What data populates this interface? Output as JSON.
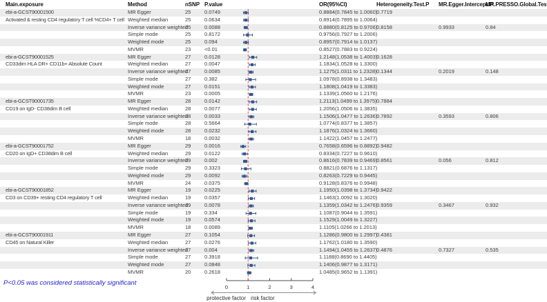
{
  "footnote": "P<0.05 was considered statistically significant",
  "colors": {
    "marker": "#33548c",
    "ref_line": "#e0493e",
    "stripe": "#ececec",
    "footnote": "#2323cc",
    "axis": "#4d4d4d",
    "arrow": "#8c8c8c",
    "tick_label": "#333333"
  },
  "chart_data": {
    "type": "table",
    "title": "",
    "headers": {
      "exposure": "Main.exposure",
      "method": "Method",
      "nsnp": "nSNP",
      "pvalue": "P.value",
      "or": "OR(95%CI)",
      "het": "Heterogeneity.Test.P",
      "egger": "MR.Egger.Intercept.P",
      "presso": "MR.PRESSO.Global.Test.P"
    },
    "x_axis": {
      "ticks": [
        0,
        1,
        2,
        3,
        4
      ],
      "range": [
        0,
        4
      ],
      "ref_line": 1,
      "label_left": "protective factor",
      "label_right": "risk factor"
    },
    "groups": [
      {
        "id": "ebi-a-GCST90001500",
        "name": "Activated & resting CD4 regulatory T cell %CD4+ T cell",
        "rows": [
          {
            "method": "MR Egger",
            "nsnp": "25",
            "p": "0.0749",
            "or": 0.8884,
            "lo": 0.7845,
            "hi": 1.006,
            "ci": "0.8884(0.7845 to 1.0060)",
            "het": "0.7719"
          },
          {
            "method": "Weighted median",
            "nsnp": "25",
            "p": "0.0634",
            "or": 0.8914,
            "lo": 0.7895,
            "hi": 1.0064,
            "ci": "0.8914(0.7895 to 1.0064)"
          },
          {
            "method": "Inverse variance weighted",
            "nsnp": "25",
            "p": "0.0088",
            "or": 0.888,
            "lo": 0.8125,
            "hi": 0.9706,
            "ci": "0.8880(0.8125 to 0.9706)",
            "het": "0.8158",
            "egger": "0.9933",
            "presso": "0.84"
          },
          {
            "method": "Simple mode",
            "nsnp": "25",
            "p": "0.8172",
            "or": 0.9756,
            "lo": 0.7927,
            "hi": 1.2006,
            "ci": "0.9756(0.7927 to 1.2006)"
          },
          {
            "method": "Weighted mode",
            "nsnp": "25",
            "p": "0.094",
            "or": 0.8957,
            "lo": 0.7914,
            "hi": 1.0137,
            "ci": "0.8957(0.7914 to 1.0137)"
          },
          {
            "method": "MVMR",
            "nsnp": "23",
            "p": "<0.01",
            "or": 0.8527,
            "lo": 0.7883,
            "hi": 0.9224,
            "ci": "0.8527(0.7883 to 0.9224)"
          }
        ]
      },
      {
        "id": "ebi-a-GCST90001525",
        "name": "CD33dim HLA DR+ CD11b+ Absolute Count",
        "rows": [
          {
            "method": "MR Egger",
            "nsnp": "27",
            "p": "0.0128",
            "or": 1.2148,
            "lo": 1.0538,
            "hi": 1.4003,
            "ci": "1.2148(1.0538 to 1.4003)",
            "het": "0.1628"
          },
          {
            "method": "Weighted median",
            "nsnp": "27",
            "p": "0.0047",
            "or": 1.1834,
            "lo": 1.0528,
            "hi": 1.33,
            "ci": "1.1834(1.0528 to 1.3300)"
          },
          {
            "method": "Inverse variance weighted",
            "nsnp": "27",
            "p": "0.0085",
            "or": 1.1275,
            "lo": 1.0311,
            "hi": 1.2328,
            "ci": "1.1275(1.0311 to 1.2328)",
            "het": "0.1344",
            "egger": "0.2019",
            "presso": "0.148"
          },
          {
            "method": "Simple mode",
            "nsnp": "27",
            "p": "0.382",
            "or": 1.0978,
            "lo": 0.8938,
            "hi": 1.3483,
            "ci": "1.0978(0.8938 to 1.3483)"
          },
          {
            "method": "Weighted mode",
            "nsnp": "27",
            "p": "0.0151",
            "or": 1.1808,
            "lo": 1.0419,
            "hi": 1.3383,
            "ci": "1.1808(1.0419 to 1.3383)"
          },
          {
            "method": "MVMR",
            "nsnp": "23",
            "p": "0.0005",
            "or": 1.1339,
            "lo": 1.056,
            "hi": 1.2176,
            "ci": "1.1339(1.0560 to 1.2176)"
          }
        ]
      },
      {
        "id": "ebi-a-GCST90001735",
        "name": "CD19 on IgD- CD38dim B cell",
        "rows": [
          {
            "method": "MR Egger",
            "nsnp": "28",
            "p": "0.0142",
            "or": 1.2113,
            "lo": 1.0499,
            "hi": 1.3975,
            "ci": "1.2113(1.0499 to 1.3975)",
            "het": "0.7884"
          },
          {
            "method": "Weighted median",
            "nsnp": "28",
            "p": "0.0077",
            "or": 1.2056,
            "lo": 1.0506,
            "hi": 1.3835,
            "ci": "1.2056(1.0506 to 1.3835)"
          },
          {
            "method": "Inverse variance weighted",
            "nsnp": "28",
            "p": "0.0033",
            "or": 1.1506,
            "lo": 1.0477,
            "hi": 1.2636,
            "ci": "1.1506(1.0477 to 1.2636)",
            "het": "0.7892",
            "egger": "0.3593",
            "presso": "0.806"
          },
          {
            "method": "Simple mode",
            "nsnp": "28",
            "p": "0.5664",
            "or": 1.0774,
            "lo": 0.8377,
            "hi": 1.3857,
            "ci": "1.0774(0.8377 to 1.3857)"
          },
          {
            "method": "Weighted mode",
            "nsnp": "28",
            "p": "0.0232",
            "or": 1.1876,
            "lo": 1.0324,
            "hi": 1.366,
            "ci": "1.1876(1.0324 to 1.3660)"
          },
          {
            "method": "MVMR",
            "nsnp": "18",
            "p": "0.0032",
            "or": 1.1422,
            "lo": 1.0457,
            "hi": 1.2477,
            "ci": "1.1422(1.0457 to 1.2477)"
          }
        ]
      },
      {
        "id": "ebi-a-GCST90001752",
        "name": "CD20 on IgD+ CD38dim B cell",
        "rows": [
          {
            "method": "MR Egger",
            "nsnp": "29",
            "p": "0.0016",
            "or": 0.7658,
            "lo": 0.6596,
            "hi": 0.8892,
            "ci": "0.7658(0.6596 to 0.8892)",
            "het": "0.9482"
          },
          {
            "method": "Weighted median",
            "nsnp": "29",
            "p": "0.0122",
            "or": 0.8334,
            "lo": 0.7227,
            "hi": 0.961,
            "ci": "0.8334(0.7227 to 0.9610)"
          },
          {
            "method": "Inverse variance weighted",
            "nsnp": "29",
            "p": "0.002",
            "or": 0.8616,
            "lo": 0.7839,
            "hi": 0.9469,
            "ci": "0.8616(0.7839 to 0.9469)",
            "het": "0.8561",
            "egger": "0.056",
            "presso": "0.812"
          },
          {
            "method": "Simple mode",
            "nsnp": "29",
            "p": "0.3323",
            "or": 0.8821,
            "lo": 0.6876,
            "hi": 1.1317,
            "ci": "0.8821(0.6876 to 1.1317)"
          },
          {
            "method": "Weighted mode",
            "nsnp": "29",
            "p": "0.0092",
            "or": 0.8263,
            "lo": 0.7229,
            "hi": 0.9445,
            "ci": "0.8263(0.7229 to 0.9445)"
          },
          {
            "method": "MVMR",
            "nsnp": "24",
            "p": "0.0375",
            "or": 0.9128,
            "lo": 0.8376,
            "hi": 0.9948,
            "ci": "0.9128(0.8376 to 0.9948)"
          }
        ]
      },
      {
        "id": "ebi-a-GCST90001852",
        "name": "CD3 on CD39+ resting CD4 regulatory T cell",
        "rows": [
          {
            "method": "MR Egger",
            "nsnp": "19",
            "p": "0.0225",
            "or": 1.195,
            "lo": 1.0398,
            "hi": 1.3734,
            "ci": "1.1950(1.0398 to 1.3734)",
            "het": "0.9422"
          },
          {
            "method": "Weighted median",
            "nsnp": "19",
            "p": "0.0357",
            "or": 1.1463,
            "lo": 1.0092,
            "hi": 1.302,
            "ci": "1.1463(1.0092 to 1.3020)"
          },
          {
            "method": "Inverse variance weighted",
            "nsnp": "19",
            "p": "0.0078",
            "or": 1.1359,
            "lo": 1.0342,
            "hi": 1.2476,
            "ci": "1.1359(1.0342 to 1.2476)",
            "het": "0.9359",
            "egger": "0.3467",
            "presso": "0.932"
          },
          {
            "method": "Simple mode",
            "nsnp": "19",
            "p": "0.334",
            "or": 1.1087,
            "lo": 0.9044,
            "hi": 1.3591,
            "ci": "1.1087(0.9044 to 1.3591)"
          },
          {
            "method": "Weighted mode",
            "nsnp": "19",
            "p": "0.0574",
            "or": 1.1529,
            "lo": 1.0049,
            "hi": 1.3227,
            "ci": "1.1529(1.0049 to 1.3227)"
          },
          {
            "method": "MVMR",
            "nsnp": "18",
            "p": "0.0089",
            "or": 1.1105,
            "lo": 1.0266,
            "hi": 1.2013,
            "ci": "1.1105(1.0266 to 1.2013)"
          }
        ]
      },
      {
        "id": "ebi-a-GCST90001911",
        "name": "CD45 on Natural Killer",
        "rows": [
          {
            "method": "MR Egger",
            "nsnp": "27",
            "p": "0.1054",
            "or": 1.1286,
            "lo": 0.98,
            "hi": 1.2997,
            "ci": "1.1286(0.9800 to 1.2997)",
            "het": "0.4381"
          },
          {
            "method": "Weighted median",
            "nsnp": "27",
            "p": "0.0276",
            "or": 1.1762,
            "lo": 1.018,
            "hi": 1.359,
            "ci": "1.1762(1.0180 to 1.3590)"
          },
          {
            "method": "Inverse variance weighted",
            "nsnp": "27",
            "p": "0.004",
            "or": 1.1494,
            "lo": 1.0455,
            "hi": 1.2637,
            "ci": "1.1494(1.0455 to 1.2637)",
            "het": "0.4876",
            "egger": "0.7327",
            "presso": "0.535"
          },
          {
            "method": "Simple mode",
            "nsnp": "27",
            "p": "0.3918",
            "or": 1.1188,
            "lo": 0.869,
            "hi": 1.4405,
            "ci": "1.1188(0.8690 to 1.4405)"
          },
          {
            "method": "Weighted mode",
            "nsnp": "27",
            "p": "0.0848",
            "or": 1.1406,
            "lo": 0.9877,
            "hi": 1.3171,
            "ci": "1.1406(0.9877 to 1.3171)"
          },
          {
            "method": "MVMR",
            "nsnp": "20",
            "p": "0.2618",
            "or": 1.0485,
            "lo": 0.9652,
            "hi": 1.1391,
            "ci": "1.0485(0.9652 to 1.1391)"
          }
        ]
      }
    ]
  }
}
